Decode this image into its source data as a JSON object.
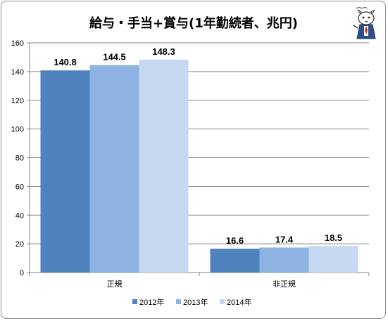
{
  "chart_data": {
    "type": "bar",
    "title": "給与・手当+賞与(1年勤続者、兆円)",
    "categories": [
      "正規",
      "非正規"
    ],
    "series": [
      {
        "name": "2012年",
        "values": [
          140.8,
          16.6
        ],
        "color": "#4f81bd"
      },
      {
        "name": "2013年",
        "values": [
          144.5,
          17.4
        ],
        "color": "#8db3e2"
      },
      {
        "name": "2014年",
        "values": [
          148.3,
          18.5
        ],
        "color": "#c6d9f1"
      }
    ],
    "ylim": [
      0,
      160
    ],
    "yticks": [
      0,
      20,
      40,
      60,
      80,
      100,
      120,
      140,
      160
    ],
    "data_labels": true,
    "grid": "horizontal",
    "legend_position": "bottom"
  },
  "decoration": {
    "mascot_icon": "cat-reporter-icon"
  }
}
